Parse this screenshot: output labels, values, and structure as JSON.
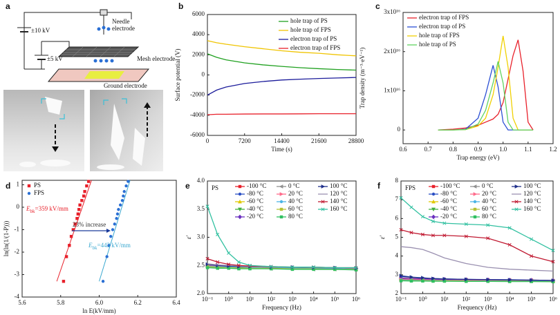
{
  "diagram": {
    "panel": "a",
    "labels": {
      "needle": [
        "Needle",
        "electrode"
      ],
      "hv1": "±10 kV",
      "hv2": "±5 kV",
      "mesh": "Mesh electrode",
      "ground": "Ground electrode"
    }
  },
  "chart_data": [
    {
      "panel": "b",
      "type": "line",
      "xlabel": "Time (s)",
      "ylabel": "Surface potential (V)",
      "x": [
        0,
        1800,
        3600,
        7200,
        10800,
        14400,
        18000,
        21600,
        25200,
        28800
      ],
      "xlim": [
        0,
        28800
      ],
      "xticks": [
        0,
        7200,
        14400,
        21600,
        28800
      ],
      "ylim": [
        -6000,
        6000
      ],
      "yticks": [
        -6000,
        -4000,
        -2000,
        0,
        2000,
        4000,
        6000
      ],
      "legend": "upper right",
      "series": [
        {
          "name": "hole trap of PS",
          "color": "#1fa01f",
          "values": [
            2100,
            1750,
            1500,
            1200,
            1000,
            850,
            720,
            620,
            540,
            480
          ]
        },
        {
          "name": "hole trap of FPS",
          "color": "#f0c400",
          "values": [
            3400,
            3200,
            3050,
            2800,
            2600,
            2400,
            2250,
            2150,
            2000,
            1900
          ]
        },
        {
          "name": "electron trap of PS",
          "color": "#1a1a9a",
          "values": [
            -2000,
            -1500,
            -1200,
            -850,
            -650,
            -500,
            -420,
            -350,
            -300,
            -250
          ]
        },
        {
          "name": "electron trap of FPS",
          "color": "#e8202a",
          "values": [
            -3950,
            -3900,
            -3900,
            -3880,
            -3870,
            -3870,
            -3860,
            -3850,
            -3850,
            -3850
          ]
        }
      ]
    },
    {
      "panel": "c",
      "type": "line",
      "xlabel": "Trap energy (eV)",
      "ylabel": "Trap density (m⁻³·eV⁻¹)",
      "x": [
        0.74,
        0.8,
        0.85,
        0.9,
        0.93,
        0.96,
        0.98,
        1.0,
        1.02,
        1.04,
        1.06,
        1.08,
        1.1,
        1.12
      ],
      "xlim": [
        0.6,
        1.2
      ],
      "xticks": [
        0.6,
        0.7,
        0.8,
        0.9,
        {
          "value": 1,
          "label": "1.0"
        },
        1.1,
        1.2
      ],
      "ylim": [
        -3500000000000000.0,
        3e+16
      ],
      "yticks": [
        0,
        {
          "value": 1e+16,
          "label": "1x10¹⁶"
        },
        {
          "value": 2e+16,
          "label": "2x10¹⁶"
        },
        {
          "value": 3e+16,
          "label": "3x10¹⁶"
        }
      ],
      "legend": "upper left",
      "series": [
        {
          "name": "electron trap of FPS",
          "color": "#e8202a",
          "values": [
            0,
            200000000000000.0,
            500000000000000.0,
            1200000000000000.0,
            2000000000000000.0,
            2800000000000000.0,
            4000000000000000.0,
            7000000000000000.0,
            1.3e+16,
            1.9e+16,
            2.3e+16,
            1.5e+16,
            2000000000000000.0,
            0
          ]
        },
        {
          "name": "electron trap of PS",
          "color": "#2a4fd4",
          "values": [
            0,
            0,
            200000000000000.0,
            3000000000000000.0,
            9000000000000000.0,
            1.65e+16,
            1.1e+16,
            2000000000000000.0,
            0,
            0,
            0,
            0,
            0,
            0
          ]
        },
        {
          "name": "hole trap of FPS",
          "color": "#f0d000",
          "values": [
            0,
            0,
            100000000000000.0,
            1000000000000000.0,
            3000000000000000.0,
            9000000000000000.0,
            1.6e+16,
            2.4e+16,
            1.6e+16,
            3000000000000000.0,
            0,
            0,
            0,
            0
          ]
        },
        {
          "name": "hole trap of PS",
          "color": "#5fd35f",
          "values": [
            0,
            0,
            100000000000000.0,
            1500000000000000.0,
            5000000000000000.0,
            1.2e+16,
            1.75e+16,
            1.2e+16,
            2000000000000000.0,
            0,
            0,
            0,
            0,
            0
          ]
        }
      ]
    },
    {
      "panel": "d",
      "type": "scatter",
      "xlabel": "ln E(kV/mm)",
      "ylabel": "ln(ln(1/(1-P)))",
      "xlim": [
        5.6,
        6.4
      ],
      "xticks": [
        5.6,
        5.8,
        {
          "value": 6,
          "label": "6.0"
        },
        6.2,
        6.4
      ],
      "ylim": [
        -4,
        1.2
      ],
      "yticks": [
        1,
        0,
        -1,
        -2,
        -3,
        -4
      ],
      "legend": "upper left",
      "series": [
        {
          "name": "PS",
          "color": "#e8202a",
          "marker": "square",
          "x": [
            5.815,
            5.83,
            5.845,
            5.855,
            5.865,
            5.875,
            5.885,
            5.89,
            5.895,
            5.9,
            5.91,
            5.92,
            5.925,
            5.935,
            5.945
          ],
          "values": [
            -3.3,
            -2.2,
            -1.7,
            -1.3,
            -1,
            -0.75,
            -0.5,
            -0.3,
            -0.1,
            0.1,
            0.3,
            0.5,
            0.7,
            0.95,
            1.15
          ]
        },
        {
          "name": "FPS",
          "color": "#2a6fd4",
          "marker": "circle",
          "x": [
            6.02,
            6.04,
            6.05,
            6.06,
            6.07,
            6.08,
            6.09,
            6.095,
            6.1,
            6.11,
            6.12,
            6.125,
            6.13,
            6.14,
            6.15
          ],
          "values": [
            -3.3,
            -2.2,
            -1.7,
            -1.3,
            -1,
            -0.75,
            -0.5,
            -0.3,
            -0.1,
            0.1,
            0.3,
            0.5,
            0.7,
            0.95,
            1.15
          ]
        }
      ],
      "fits": [
        {
          "color": "#e8202a",
          "x": [
            5.78,
            5.96
          ],
          "values": [
            -3.3,
            1.2
          ]
        },
        {
          "color": "#3aa8d0",
          "x": [
            6,
            6.16
          ],
          "values": [
            -3.3,
            1.2
          ]
        }
      ],
      "annotations": [
        {
          "symbol": "E",
          "subscript": "bk",
          "text": "=359 kV/mm",
          "color": "#e8202a"
        },
        {
          "text": "23% increase",
          "color": "#333333"
        },
        {
          "symbol": "E",
          "subscript": "bk",
          "text": "=443 kV/mm",
          "color": "#3aa8d0"
        }
      ]
    },
    {
      "panel": "e",
      "type": "line",
      "label": "PS",
      "xlabel": "Frequency (Hz)",
      "ylabel": "ε'",
      "xlog": true,
      "x": [
        0.1,
        0.3,
        1,
        3,
        10,
        100,
        1000,
        10000,
        100000,
        1000000
      ],
      "xlim": [
        0.1,
        1000000
      ],
      "xticks": [
        {
          "value": 0.1,
          "label": "10⁻¹"
        },
        {
          "value": 1,
          "label": "10⁰"
        },
        {
          "value": 10,
          "label": "10¹"
        },
        {
          "value": 100,
          "label": "10²"
        },
        {
          "value": 1000,
          "label": "10³"
        },
        {
          "value": 10000,
          "label": "10⁴"
        },
        {
          "value": 100000,
          "label": "10⁵"
        },
        {
          "value": 1000000,
          "label": "10⁶"
        }
      ],
      "ylim": [
        2,
        4
      ],
      "yticks": [
        {
          "value": 2,
          "label": "2.0"
        },
        {
          "value": 2.5,
          "label": "2.5"
        },
        {
          "value": 3,
          "label": "3.0"
        },
        {
          "value": 3.5,
          "label": "3.5"
        },
        {
          "value": 4,
          "label": "4.0"
        }
      ],
      "legend": "top",
      "series": [
        {
          "name": "-100 °C",
          "color": "#e8202a",
          "marker": "square",
          "values": [
            2.5,
            2.49,
            2.48,
            2.47,
            2.47,
            2.46,
            2.45,
            2.45,
            2.44,
            2.44
          ]
        },
        {
          "name": "-80 °C",
          "color": "#2a4fc4",
          "marker": "circle",
          "values": [
            2.49,
            2.48,
            2.47,
            2.47,
            2.46,
            2.46,
            2.45,
            2.44,
            2.44,
            2.43
          ]
        },
        {
          "name": "-60 °C",
          "color": "#e0c800",
          "marker": "triangle-up",
          "values": [
            2.5,
            2.49,
            2.48,
            2.48,
            2.47,
            2.46,
            2.46,
            2.45,
            2.45,
            2.44
          ]
        },
        {
          "name": "-40 °C",
          "color": "#40b040",
          "marker": "triangle-down",
          "values": [
            2.48,
            2.47,
            2.47,
            2.46,
            2.46,
            2.45,
            2.45,
            2.44,
            2.44,
            2.43
          ]
        },
        {
          "name": "-20 °C",
          "color": "#6a2fbf",
          "marker": "diamond",
          "values": [
            2.5,
            2.49,
            2.48,
            2.47,
            2.47,
            2.46,
            2.46,
            2.45,
            2.45,
            2.44
          ]
        },
        {
          "name": "0 °C",
          "color": "#909090",
          "marker": "triangle-left",
          "values": [
            2.47,
            2.46,
            2.46,
            2.45,
            2.45,
            2.44,
            2.44,
            2.43,
            2.43,
            2.43
          ]
        },
        {
          "name": "20 °C",
          "color": "#ff6a8a",
          "marker": "triangle-right",
          "values": [
            2.51,
            2.5,
            2.49,
            2.48,
            2.48,
            2.47,
            2.46,
            2.46,
            2.45,
            2.45
          ]
        },
        {
          "name": "40 °C",
          "color": "#4ab4e6",
          "marker": "circle",
          "values": [
            2.49,
            2.48,
            2.47,
            2.47,
            2.46,
            2.46,
            2.45,
            2.45,
            2.44,
            2.44
          ]
        },
        {
          "name": "60 °C",
          "color": "#b5c235",
          "marker": "square",
          "values": [
            2.48,
            2.47,
            2.46,
            2.46,
            2.45,
            2.45,
            2.44,
            2.44,
            2.43,
            2.43
          ]
        },
        {
          "name": "80 °C",
          "color": "#30c060",
          "marker": "square",
          "values": [
            2.46,
            2.45,
            2.45,
            2.44,
            2.44,
            2.44,
            2.43,
            2.43,
            2.43,
            2.42
          ]
        },
        {
          "name": "100 °C",
          "color": "#1f2f8a",
          "marker": "triangle-right",
          "values": [
            2.52,
            2.5,
            2.49,
            2.48,
            2.48,
            2.47,
            2.47,
            2.46,
            2.46,
            2.45
          ]
        },
        {
          "name": "120 °C",
          "color": "#9a90b0",
          "marker": "none",
          "values": [
            2.53,
            2.51,
            2.5,
            2.49,
            2.48,
            2.47,
            2.47,
            2.46,
            2.46,
            2.45
          ]
        },
        {
          "name": "140 °C",
          "color": "#c01830",
          "marker": "cross",
          "values": [
            2.62,
            2.56,
            2.52,
            2.5,
            2.49,
            2.48,
            2.47,
            2.47,
            2.46,
            2.46
          ]
        },
        {
          "name": "160 °C",
          "color": "#30c0a0",
          "marker": "cross",
          "values": [
            3.55,
            3.05,
            2.72,
            2.56,
            2.5,
            2.48,
            2.47,
            2.47,
            2.46,
            2.46
          ]
        }
      ]
    },
    {
      "panel": "f",
      "type": "line",
      "label": "FPS",
      "xlabel": "Frequency (Hz)",
      "ylabel": "ε'",
      "xlog": true,
      "x": [
        0.1,
        0.3,
        1,
        3,
        10,
        100,
        1000,
        10000,
        100000,
        1000000
      ],
      "xlim": [
        0.1,
        1000000
      ],
      "xticks": [
        {
          "value": 0.1,
          "label": "10⁻¹"
        },
        {
          "value": 1,
          "label": "10⁰"
        },
        {
          "value": 10,
          "label": "10¹"
        },
        {
          "value": 100,
          "label": "10²"
        },
        {
          "value": 1000,
          "label": "10³"
        },
        {
          "value": 10000,
          "label": "10⁴"
        },
        {
          "value": 100000,
          "label": "10⁵"
        },
        {
          "value": 1000000,
          "label": "10⁶"
        }
      ],
      "ylim": [
        2,
        8
      ],
      "yticks": [
        2,
        3,
        4,
        5,
        6,
        7,
        8
      ],
      "legend": "top",
      "series": [
        {
          "name": "-100 °C",
          "color": "#e8202a",
          "marker": "square",
          "values": [
            2.82,
            2.8,
            2.78,
            2.77,
            2.76,
            2.75,
            2.74,
            2.73,
            2.72,
            2.7
          ]
        },
        {
          "name": "-80 °C",
          "color": "#2a4fc4",
          "marker": "circle",
          "values": [
            2.9,
            2.86,
            2.82,
            2.8,
            2.78,
            2.76,
            2.75,
            2.74,
            2.72,
            2.7
          ]
        },
        {
          "name": "-60 °C",
          "color": "#e0c800",
          "marker": "triangle-up",
          "values": [
            2.78,
            2.76,
            2.75,
            2.74,
            2.73,
            2.72,
            2.71,
            2.7,
            2.69,
            2.68
          ]
        },
        {
          "name": "-40 °C",
          "color": "#40b040",
          "marker": "triangle-down",
          "values": [
            2.76,
            2.75,
            2.74,
            2.73,
            2.72,
            2.71,
            2.7,
            2.69,
            2.68,
            2.67
          ]
        },
        {
          "name": "-20 °C",
          "color": "#6a2fbf",
          "marker": "diamond",
          "values": [
            2.8,
            2.78,
            2.77,
            2.76,
            2.75,
            2.74,
            2.73,
            2.72,
            2.71,
            2.69
          ]
        },
        {
          "name": "0 °C",
          "color": "#909090",
          "marker": "triangle-left",
          "values": [
            2.74,
            2.73,
            2.72,
            2.71,
            2.7,
            2.7,
            2.69,
            2.68,
            2.67,
            2.66
          ]
        },
        {
          "name": "20 °C",
          "color": "#ff6a8a",
          "marker": "triangle-right",
          "values": [
            2.75,
            2.74,
            2.73,
            2.72,
            2.71,
            2.7,
            2.69,
            2.68,
            2.67,
            2.66
          ]
        },
        {
          "name": "40 °C",
          "color": "#4ab4e6",
          "marker": "circle",
          "values": [
            2.72,
            2.71,
            2.7,
            2.7,
            2.69,
            2.68,
            2.67,
            2.67,
            2.66,
            2.65
          ]
        },
        {
          "name": "60 °C",
          "color": "#b5c235",
          "marker": "square",
          "values": [
            2.7,
            2.69,
            2.69,
            2.68,
            2.68,
            2.67,
            2.66,
            2.66,
            2.65,
            2.64
          ]
        },
        {
          "name": "80 °C",
          "color": "#30c060",
          "marker": "square",
          "values": [
            2.68,
            2.67,
            2.67,
            2.66,
            2.66,
            2.65,
            2.65,
            2.64,
            2.64,
            2.63
          ]
        },
        {
          "name": "100 °C",
          "color": "#1f2f8a",
          "marker": "triangle-right",
          "values": [
            2.95,
            2.88,
            2.84,
            2.8,
            2.78,
            2.76,
            2.74,
            2.73,
            2.71,
            2.7
          ]
        },
        {
          "name": "120 °C",
          "color": "#9a90b0",
          "marker": "none",
          "values": [
            4.5,
            4.45,
            4.35,
            4.15,
            3.9,
            3.6,
            3.4,
            3.3,
            3.25,
            3.2
          ]
        },
        {
          "name": "140 °C",
          "color": "#c01830",
          "marker": "cross",
          "values": [
            5.4,
            5.25,
            5.15,
            5.1,
            5.1,
            5.05,
            4.95,
            4.6,
            4,
            3.7
          ]
        },
        {
          "name": "160 °C",
          "color": "#30c0a0",
          "marker": "cross",
          "values": [
            7.1,
            6.6,
            6.1,
            5.85,
            5.75,
            5.7,
            5.65,
            5.5,
            4.9,
            4.3
          ]
        }
      ]
    }
  ]
}
